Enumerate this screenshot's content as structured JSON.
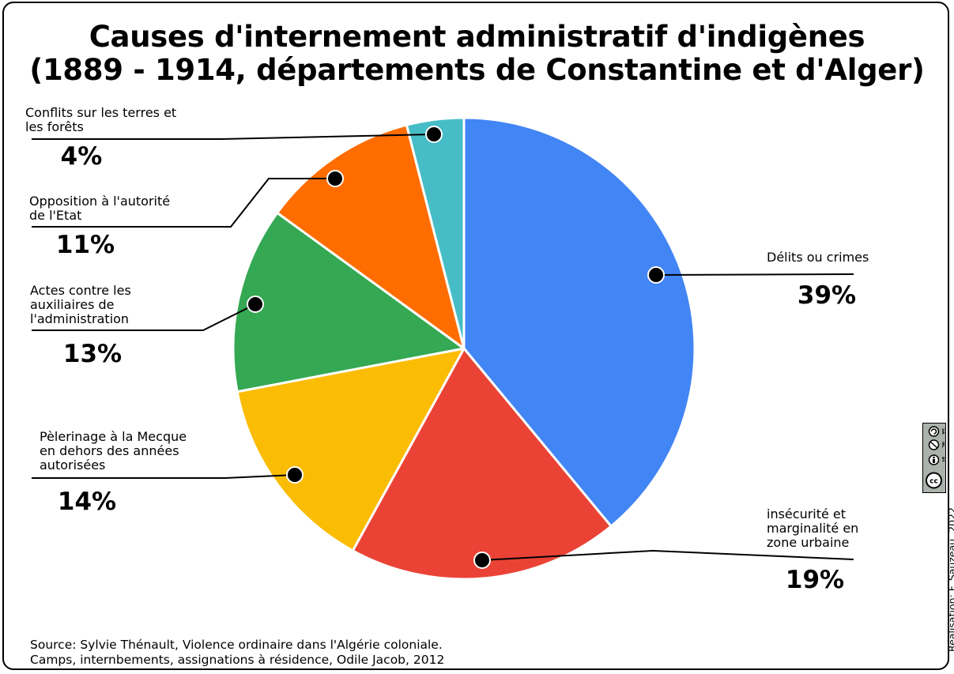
{
  "title_line1": "Causes d'internement administratif d'indigènes",
  "title_line2": "(1889 - 1914, départements de Constantine et d'Alger)",
  "source_line1": "Source: Sylvie Thénault, Violence ordinaire dans l'Algérie coloniale.",
  "source_line2": "Camps, internbements, assignations à résidence, Odile Jacob, 2012",
  "credit": "Réalisation: F. Sauzeau, 2022",
  "license_badge": {
    "icons": [
      "cc-icon",
      "by-icon",
      "nc-icon",
      "sa-icon"
    ],
    "labels": [
      "BY",
      "NC",
      "SA"
    ]
  },
  "chart_data": {
    "type": "pie",
    "start": "top, clockwise",
    "slices": [
      {
        "label": [
          "Délits ou crimes"
        ],
        "value": 39,
        "pct_label": "39%",
        "color": "#4285f4"
      },
      {
        "label": [
          "insécurité et",
          "marginalité en",
          "zone urbaine"
        ],
        "value": 19,
        "pct_label": "19%",
        "color": "#ea4335"
      },
      {
        "label": [
          "Pèlerinage à la Mecque",
          "en dehors des années",
          "autorisées"
        ],
        "value": 14,
        "pct_label": "14%",
        "color": "#fbbc04"
      },
      {
        "label": [
          "Actes contre les",
          "auxiliaires de",
          "l'administration"
        ],
        "value": 13,
        "pct_label": "13%",
        "color": "#34a853"
      },
      {
        "label": [
          "Opposition à l'autorité",
          "de l'Etat"
        ],
        "value": 11,
        "pct_label": "11%",
        "color": "#ff6d01"
      },
      {
        "label": [
          "Conflits sur les terres et",
          "les forêts"
        ],
        "value": 4,
        "pct_label": "4%",
        "color": "#46bdc6"
      }
    ]
  }
}
